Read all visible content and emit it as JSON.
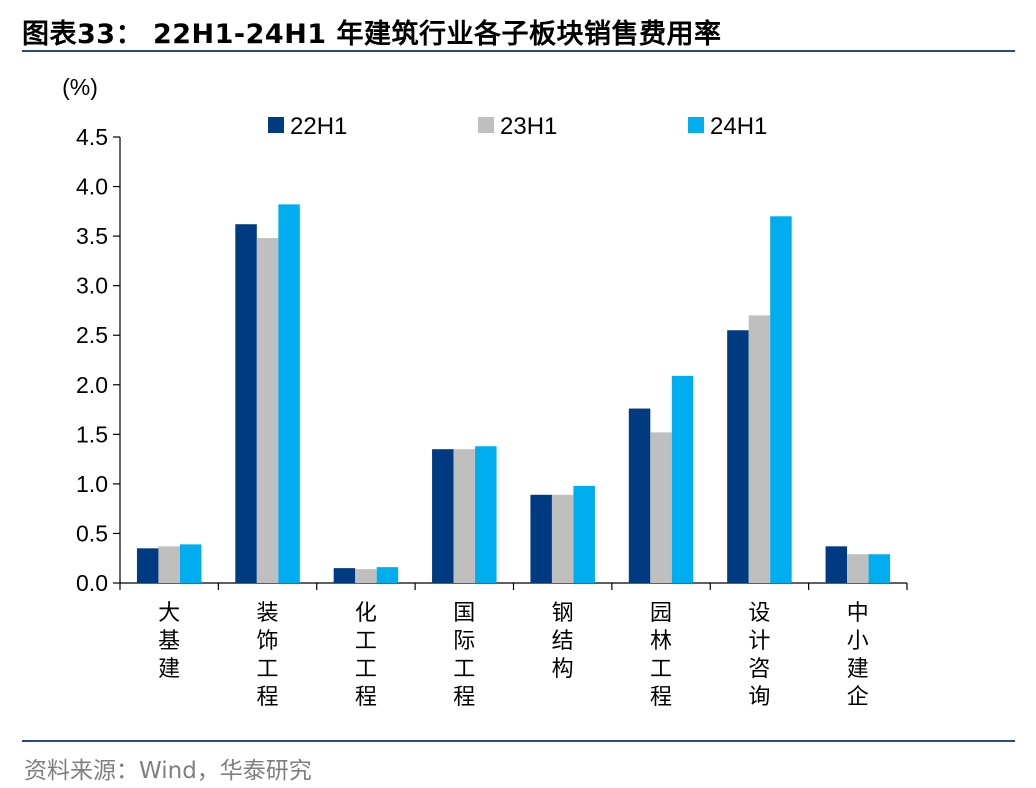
{
  "header": {
    "title": "图表33： 22H1-24H1 年建筑行业各子板块销售费用率"
  },
  "footer": {
    "source": "资料来源：Wind，华泰研究"
  },
  "chart_data": {
    "type": "bar",
    "title": "图表33： 22H1-24H1 年建筑行业各子板块销售费用率",
    "ylabel": "(%)",
    "xlabel": "",
    "ylim": [
      0,
      4.5
    ],
    "yticks": [
      "0.0",
      "0.5",
      "1.0",
      "1.5",
      "2.0",
      "2.5",
      "3.0",
      "3.5",
      "4.0",
      "4.5"
    ],
    "categories": [
      "大基建",
      "装饰工程",
      "化工工程",
      "国际工程",
      "钢结构",
      "园林工程",
      "设计咨询",
      "中小建企"
    ],
    "series": [
      {
        "name": "22H1",
        "color": "#003a80",
        "values": [
          0.35,
          3.62,
          0.15,
          1.35,
          0.89,
          1.76,
          2.55,
          0.37
        ]
      },
      {
        "name": "23H1",
        "color": "#bfbfbf",
        "values": [
          0.37,
          3.48,
          0.14,
          1.35,
          0.89,
          1.52,
          2.7,
          0.29
        ]
      },
      {
        "name": "24H1",
        "color": "#00aeef",
        "values": [
          0.39,
          3.82,
          0.16,
          1.38,
          0.98,
          2.09,
          3.7,
          0.29
        ]
      }
    ],
    "legend_position": "top",
    "grid": false
  }
}
